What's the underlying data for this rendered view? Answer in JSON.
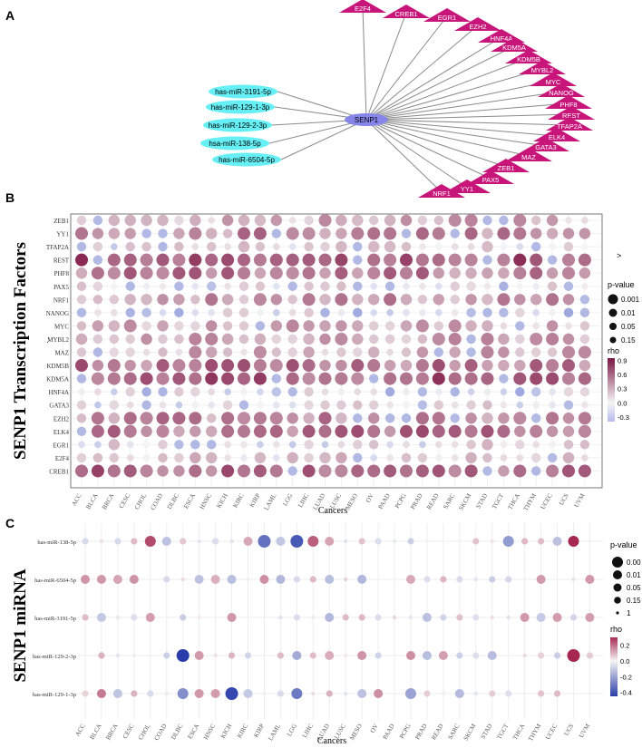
{
  "panel_labels": {
    "a": "A",
    "b": "B",
    "c": "C"
  },
  "stray_marks": {
    "gt": ">",
    "dot": "·"
  },
  "network": {
    "hub": "SENP1",
    "mirnas": [
      "has-miR-3191-5p",
      "has-miR-129-1-3p",
      "has-miR-129-2-3p",
      "hsa-miR-138-5p",
      "has-miR-6504-5p"
    ],
    "tfs": [
      "E2F4",
      "CREB1",
      "EGR1",
      "EZH2",
      "HNF4A",
      "KDM5A",
      "KDM5B",
      "MYBL2",
      "MYC",
      "NANOG",
      "PHF8",
      "REST",
      "TFAP2A",
      "ELK4",
      "GATA3",
      "MAZ",
      "ZEB1",
      "PAX5",
      "YY1",
      "NRF1"
    ],
    "colors": {
      "mirna": "#66f0f5",
      "tf": "#c8157a",
      "hub": "#8585ea",
      "edge": "#8a8a8a"
    }
  },
  "chart_data": [
    {
      "type": "dot-heatmap",
      "title": "SENP1 Transcription Factors",
      "ylabel": "SENP1 Transcription Factors",
      "xlabel": "Cancers",
      "cancers": [
        "ACC",
        "BLCA",
        "BRCA",
        "CESC",
        "CHOL",
        "COAD",
        "DLBC",
        "ESCA",
        "HNSC",
        "KICH",
        "KIRC",
        "KIRP",
        "LAML",
        "LGG",
        "LIHC",
        "LUAD",
        "LUSC",
        "MESO",
        "OV",
        "PAAD",
        "PCPG",
        "PRAD",
        "READ",
        "SARC",
        "SKCM",
        "STAD",
        "TGCT",
        "THCA",
        "THYM",
        "UCEC",
        "UCS",
        "UVM"
      ],
      "rows": [
        "ZEB1",
        "YY1",
        "TFAP2A",
        "REST",
        "PHF8",
        "PAX5",
        "NRF1",
        "NANOG",
        "MYC",
        "MYBL2",
        "MAZ",
        "KDM5B",
        "KDM5A",
        "HNF4A",
        "GATA3",
        "EZH2",
        "ELK4",
        "EGR1",
        "E2F4",
        "CREB1"
      ],
      "base_rho": [
        0.3,
        0.45,
        0.1,
        0.7,
        0.5,
        0.05,
        0.4,
        0.02,
        0.3,
        0.35,
        0.3,
        0.55,
        0.65,
        0.0,
        0.05,
        0.45,
        0.55,
        0.1,
        0.15,
        0.6
      ],
      "size_legend": {
        "title": "p-value",
        "labels": [
          "0.001 >",
          "0.01",
          "0.05",
          "0.15"
        ]
      },
      "color_legend": {
        "title": "rho",
        "ticks": [
          0.9,
          0.6,
          0.3,
          0.0,
          -0.3
        ],
        "range": [
          -0.4,
          0.95
        ]
      }
    },
    {
      "type": "dot-heatmap",
      "title": "SENP1 miRNA",
      "ylabel": "SENP1 miRNA",
      "xlabel": "Cancers",
      "cancers": [
        "ACC",
        "BLCA",
        "BRCA",
        "CESC",
        "CHOL",
        "COAD",
        "DLBC",
        "ESCA",
        "HNSC",
        "KICH",
        "KIRC",
        "KIRP",
        "LAML",
        "LGG",
        "LIHC",
        "LUAD",
        "LUSC",
        "MESO",
        "OV",
        "PAAD",
        "PCPG",
        "PRAD",
        "READ",
        "SARC",
        "SKCM",
        "STAD",
        "TGCT",
        "THCA",
        "THYM",
        "UCEC",
        "UCS",
        "UVM"
      ],
      "rows": [
        "has-miR-138-5p",
        "has-miR-6504-5p",
        "has-miR-3191-5p",
        "has-miR-129-2-3p",
        "has-miR-129-1-3p"
      ],
      "size_legend": {
        "title": "p-value",
        "labels": [
          "0.00",
          "0.01",
          "0.05",
          "0.15",
          "1"
        ]
      },
      "color_legend": {
        "title": "rho",
        "ticks": [
          0.2,
          0.0,
          -0.2,
          -0.4
        ],
        "range": [
          -0.45,
          0.3
        ]
      }
    }
  ]
}
